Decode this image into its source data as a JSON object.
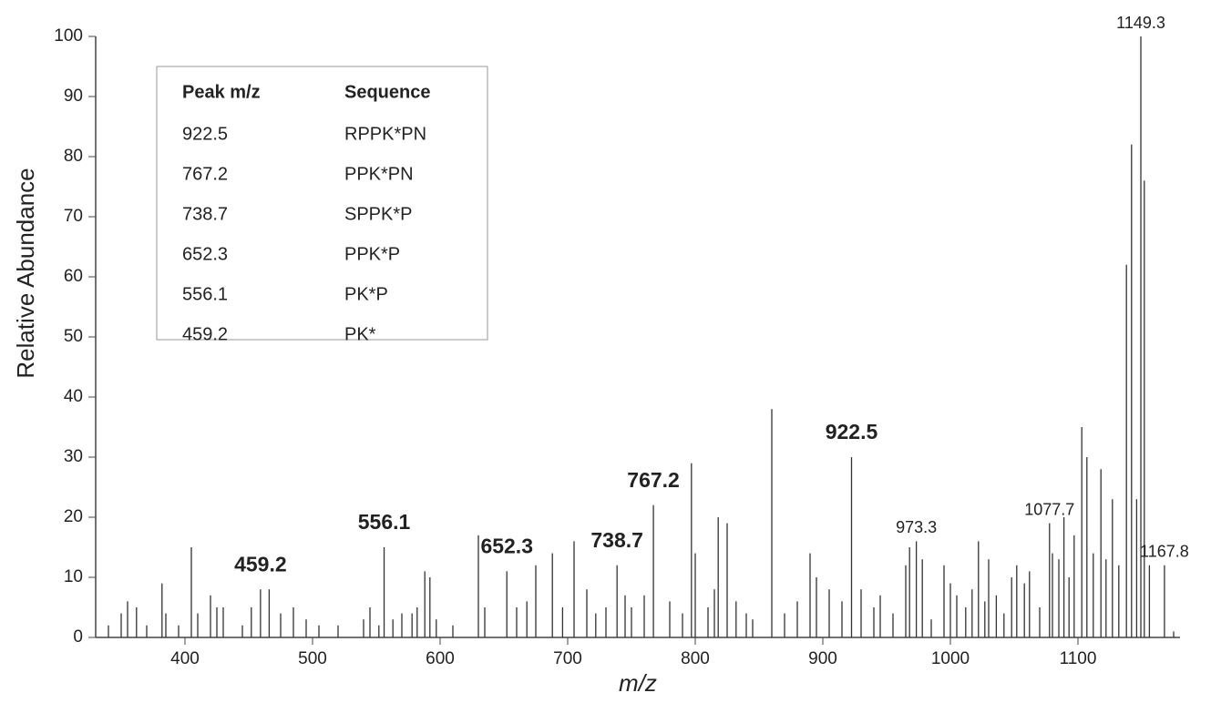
{
  "chart_data": {
    "type": "stem",
    "xlabel": "m/z",
    "ylabel": "Relative Abundance",
    "xlim": [
      330,
      1180
    ],
    "ylim": [
      0,
      100
    ],
    "xticks": [
      400,
      500,
      600,
      700,
      800,
      900,
      1000,
      1100
    ],
    "yticks": [
      0,
      10,
      20,
      30,
      40,
      50,
      60,
      70,
      80,
      90,
      100
    ],
    "color": "#333333",
    "x": [
      340,
      350,
      355,
      362,
      370,
      382,
      385,
      395,
      405,
      410,
      420,
      425,
      430,
      445,
      452,
      459.2,
      466,
      475,
      485,
      495,
      505,
      520,
      540,
      545,
      552,
      556.1,
      563,
      570,
      578,
      582,
      588,
      592,
      597,
      610,
      630,
      635,
      652.3,
      660,
      668,
      675,
      688,
      696,
      705,
      715,
      722,
      730,
      738.7,
      745,
      750,
      760,
      767.2,
      780,
      790,
      797,
      800,
      810,
      815,
      818,
      825,
      832,
      840,
      845,
      860,
      870,
      880,
      890,
      895,
      905,
      915,
      922.5,
      930,
      940,
      945,
      955,
      965,
      968,
      973.3,
      978,
      985,
      995,
      1000,
      1005,
      1012,
      1017,
      1022,
      1027,
      1030,
      1036,
      1042,
      1048,
      1052,
      1058,
      1062,
      1070,
      1077.7,
      1080,
      1085,
      1089,
      1093,
      1097,
      1103,
      1107,
      1112,
      1118,
      1122,
      1127,
      1132,
      1138,
      1142,
      1146,
      1149.3,
      1152,
      1156,
      1167.8,
      1175
    ],
    "values": [
      2,
      4,
      6,
      5,
      2,
      9,
      4,
      2,
      15,
      4,
      7,
      5,
      5,
      2,
      5,
      8,
      8,
      4,
      5,
      3,
      2,
      2,
      3,
      5,
      2,
      15,
      3,
      4,
      4,
      5,
      11,
      10,
      3,
      2,
      17,
      5,
      11,
      5,
      6,
      12,
      14,
      5,
      16,
      8,
      4,
      5,
      12,
      7,
      5,
      7,
      22,
      6,
      4,
      29,
      14,
      5,
      8,
      20,
      19,
      6,
      4,
      3,
      38,
      4,
      6,
      14,
      10,
      8,
      6,
      30,
      8,
      5,
      7,
      4,
      12,
      15,
      16,
      13,
      3,
      12,
      9,
      7,
      5,
      8,
      16,
      6,
      13,
      7,
      4,
      10,
      12,
      9,
      11,
      5,
      19,
      14,
      13,
      20,
      10,
      17,
      35,
      30,
      14,
      28,
      13,
      23,
      12,
      62,
      82,
      23,
      100,
      76,
      12,
      12,
      1
    ],
    "peak_labels": [
      null,
      null,
      null,
      null,
      null,
      null,
      null,
      null,
      null,
      null,
      null,
      null,
      null,
      null,
      null,
      "459.2",
      null,
      null,
      null,
      null,
      null,
      null,
      null,
      null,
      null,
      "556.1",
      null,
      null,
      null,
      null,
      null,
      null,
      null,
      null,
      null,
      null,
      "652.3",
      null,
      null,
      null,
      null,
      null,
      null,
      null,
      null,
      null,
      "738.7",
      null,
      null,
      null,
      "767.2",
      null,
      null,
      null,
      null,
      null,
      null,
      null,
      null,
      null,
      null,
      null,
      null,
      null,
      null,
      null,
      null,
      null,
      null,
      "922.5",
      null,
      null,
      null,
      null,
      null,
      null,
      "973.3",
      null,
      null,
      null,
      null,
      null,
      null,
      null,
      null,
      null,
      null,
      null,
      null,
      null,
      null,
      null,
      null,
      null,
      "1077.7",
      null,
      null,
      null,
      null,
      null,
      null,
      null,
      null,
      null,
      null,
      null,
      null,
      null,
      null,
      null,
      "1149.3",
      null,
      null,
      "1167.8",
      null
    ]
  },
  "inset_table": {
    "headers": [
      "Peak m/z",
      "Sequence"
    ],
    "rows": [
      [
        "922.5",
        "RPPK*PN"
      ],
      [
        "767.2",
        "PPK*PN"
      ],
      [
        "738.7",
        "SPPK*P"
      ],
      [
        "652.3",
        "PPK*P"
      ],
      [
        "556.1",
        "PK*P"
      ],
      [
        "459.2",
        "PK*"
      ]
    ]
  }
}
